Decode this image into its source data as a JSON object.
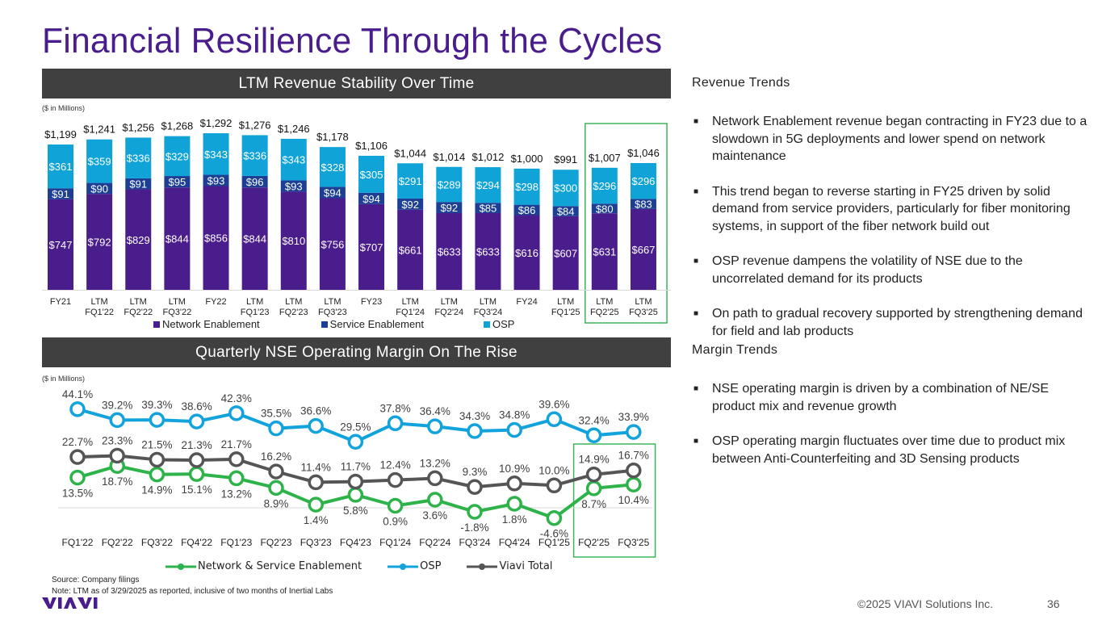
{
  "page": {
    "title": "Financial Resilience Through the Cycles",
    "footer_copyright": "©2025   VIAVI Solutions Inc.",
    "page_number": "36",
    "logo_text": "VIAVI",
    "source": "Source: Company filings",
    "note": "Note: LTM as of 3/29/2025 as reported, inclusive of two months of Inertial Labs"
  },
  "sections": {
    "revenue_header": "LTM Revenue Stability Over Time",
    "margin_header": "Quarterly NSE Operating Margin On The Rise",
    "revenue_units": "($ in Millions)",
    "margin_units": "($ in Millions)"
  },
  "colors": {
    "title": "#4a1d8c",
    "network_enablement": "#4a1d8c",
    "service_enablement": "#1c3f94",
    "osp_bar": "#0fa3d8",
    "nse_line": "#2db34a",
    "osp_line": "#12a3dc",
    "total_line": "#555555",
    "highlight": "#3cb55a",
    "header_bar": "#404040"
  },
  "chart_data": [
    {
      "type": "bar",
      "stacked": true,
      "title": "LTM Revenue Stability Over Time",
      "ylabel": "($ in Millions)",
      "categories": [
        "FY21",
        "LTM\nFQ1'22",
        "LTM\nFQ2'22",
        "LTM\nFQ3'22",
        "FY22",
        "LTM\nFQ1'23",
        "LTM\nFQ2'23",
        "LTM\nFQ3'23",
        "FY23",
        "LTM\nFQ1'24",
        "LTM\nFQ2'24",
        "LTM\nFQ3'24",
        "FY24",
        "LTM\nFQ1'25",
        "LTM\nFQ2'25",
        "LTM\nFQ3'25"
      ],
      "series": [
        {
          "name": "Network Enablement",
          "values": [
            747,
            792,
            829,
            844,
            856,
            844,
            810,
            756,
            707,
            661,
            633,
            633,
            616,
            607,
            631,
            667
          ]
        },
        {
          "name": "Service Enablement",
          "values": [
            91,
            90,
            91,
            95,
            93,
            96,
            93,
            94,
            94,
            92,
            92,
            85,
            86,
            84,
            80,
            83
          ]
        },
        {
          "name": "OSP",
          "values": [
            361,
            359,
            336,
            329,
            343,
            336,
            343,
            328,
            305,
            291,
            289,
            294,
            298,
            300,
            296,
            296
          ]
        }
      ],
      "totals": [
        1199,
        1241,
        1256,
        1268,
        1292,
        1276,
        1246,
        1178,
        1106,
        1044,
        1014,
        1012,
        1000,
        991,
        1007,
        1046
      ],
      "value_prefix": "$",
      "highlighted_categories": [
        "LTM\nFQ2'25",
        "LTM\nFQ3'25"
      ],
      "legend": [
        "Network Enablement",
        "Service Enablement",
        "OSP"
      ],
      "legend_position": "bottom",
      "ylim": [
        0,
        1300
      ],
      "grid": false
    },
    {
      "type": "line",
      "title": "Quarterly NSE Operating Margin On The Rise",
      "categories": [
        "FQ1'22",
        "FQ2'22",
        "FQ3'22",
        "FQ4'22",
        "FQ1'23",
        "FQ2'23",
        "FQ3'23",
        "FQ4'23",
        "FQ1'24",
        "FQ2'24",
        "FQ3'24",
        "FQ4'24",
        "FQ1'25",
        "FQ2'25",
        "FQ3'25"
      ],
      "series": [
        {
          "name": "Network & Service Enablement",
          "values": [
            13.5,
            18.7,
            14.9,
            15.1,
            13.2,
            8.9,
            1.4,
            5.8,
            0.9,
            3.6,
            -1.8,
            1.8,
            -4.6,
            8.7,
            10.4
          ]
        },
        {
          "name": "OSP",
          "values": [
            44.1,
            39.2,
            39.3,
            38.6,
            42.3,
            35.5,
            36.6,
            29.5,
            37.8,
            36.4,
            34.3,
            34.8,
            39.6,
            32.4,
            33.9
          ]
        },
        {
          "name": "Viavi Total",
          "values": [
            22.7,
            23.3,
            21.5,
            21.3,
            21.7,
            16.2,
            11.4,
            11.7,
            12.4,
            13.2,
            9.3,
            10.9,
            10.0,
            14.9,
            16.7
          ]
        }
      ],
      "value_suffix": "%",
      "highlighted_categories": [
        "FQ2'25",
        "FQ3'25"
      ],
      "legend": [
        "Network & Service Enablement",
        "OSP",
        "Viavi Total"
      ],
      "legend_position": "bottom",
      "ylim": [
        -6,
        46
      ],
      "zero_line": true,
      "grid": false
    }
  ],
  "right_panel": {
    "revenue_heading": "Revenue Trends",
    "revenue_bullets": [
      "Network Enablement revenue began contracting in FY23 due to a slowdown in 5G deployments and lower spend on network maintenance",
      "This trend began to reverse starting in FY25 driven by solid demand from service providers, particularly for fiber monitoring systems, in support of the fiber network build out",
      "OSP revenue dampens the volatility of NSE due to the uncorrelated demand for its products",
      "On path to gradual recovery supported by strengthening demand for field and lab products"
    ],
    "margin_heading": "Margin Trends",
    "margin_bullets": [
      "NSE operating margin is driven by a combination of NE/SE product mix and revenue growth",
      "OSP operating margin fluctuates over time due to product mix between Anti-Counterfeiting and 3D Sensing products"
    ],
    "bullet_glyph": "■"
  }
}
